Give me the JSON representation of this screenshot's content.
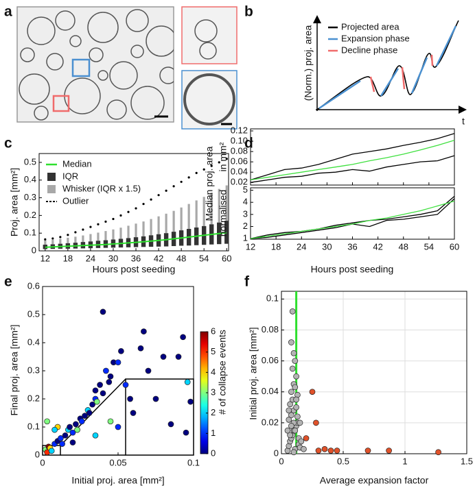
{
  "panel_labels": [
    "a",
    "b",
    "c",
    "d",
    "e",
    "f"
  ],
  "schematic": {
    "ylabel": "(Norm.) proj. area",
    "xlabel": "t",
    "legend": [
      {
        "name": "Projected area",
        "color": "#000000"
      },
      {
        "name": "Expansion phase",
        "color": "#4a90d0"
      },
      {
        "name": "Decline phase",
        "color": "#f06b6b"
      }
    ]
  },
  "chart_data": [
    {
      "type": "box",
      "xlabel": "Hours post seeding",
      "ylabel": "Proj. area [mm²]",
      "x": [
        12,
        14,
        16,
        18,
        20,
        22,
        24,
        26,
        28,
        30,
        32,
        34,
        36,
        38,
        40,
        42,
        44,
        46,
        48,
        50,
        52,
        54,
        56,
        58,
        60
      ],
      "xlim": [
        10.4,
        60.5
      ],
      "xticks": [
        12,
        18,
        24,
        30,
        36,
        42,
        48,
        54,
        60
      ],
      "ylim": [
        0,
        0.55
      ],
      "yticks": [
        0,
        0.1,
        0.2,
        0.3,
        0.4,
        0.5
      ],
      "series": [
        {
          "name": "Median",
          "kind": "line",
          "color": "#2ee02e",
          "values": [
            0.02,
            0.022,
            0.024,
            0.026,
            0.028,
            0.03,
            0.032,
            0.034,
            0.036,
            0.039,
            0.042,
            0.045,
            0.048,
            0.051,
            0.055,
            0.059,
            0.063,
            0.068,
            0.073,
            0.078,
            0.083,
            0.088,
            0.093,
            0.098,
            0.103
          ]
        },
        {
          "name": "IQR",
          "kind": "range",
          "color": "#333333",
          "low": [
            0.01,
            0.011,
            0.012,
            0.012,
            0.013,
            0.014,
            0.015,
            0.016,
            0.017,
            0.018,
            0.019,
            0.02,
            0.021,
            0.022,
            0.023,
            0.024,
            0.025,
            0.027,
            0.029,
            0.03,
            0.032,
            0.034,
            0.036,
            0.038,
            0.04
          ],
          "values": [
            0.035,
            0.037,
            0.04,
            0.043,
            0.046,
            0.05,
            0.053,
            0.057,
            0.06,
            0.064,
            0.068,
            0.072,
            0.077,
            0.082,
            0.088,
            0.094,
            0.1,
            0.108,
            0.116,
            0.124,
            0.132,
            0.14,
            0.15,
            0.16,
            0.17
          ]
        },
        {
          "name": "Whisker (IQR x 1.5)",
          "kind": "whisker",
          "color": "#a8a8a8",
          "values": [
            0.06,
            0.063,
            0.068,
            0.074,
            0.08,
            0.087,
            0.095,
            0.103,
            0.112,
            0.121,
            0.131,
            0.142,
            0.154,
            0.166,
            0.18,
            0.195,
            0.21,
            0.226,
            0.245,
            0.265,
            0.285,
            0.305,
            0.33,
            0.35,
            0.37
          ]
        },
        {
          "name": "Outlier",
          "kind": "points",
          "color": "#000000",
          "values": [
            0.065,
            0.07,
            0.078,
            0.09,
            0.105,
            0.12,
            0.135,
            0.15,
            0.165,
            0.18,
            0.2,
            0.22,
            0.24,
            0.265,
            0.29,
            0.315,
            0.34,
            0.365,
            0.39,
            0.415,
            0.44,
            0.46,
            0.48,
            0.5,
            0.52
          ]
        }
      ]
    },
    {
      "type": "line",
      "ylabel": "in mm²",
      "shared_ylabel": "Median proj. area",
      "x": [
        12,
        16,
        20,
        24,
        28,
        32,
        36,
        40,
        44,
        48,
        52,
        56,
        60
      ],
      "xlim": [
        12,
        60
      ],
      "xticks": [
        12,
        18,
        24,
        30,
        36,
        42,
        48,
        54,
        60
      ],
      "ylim": [
        0.015,
        0.124
      ],
      "yticks": [
        0.02,
        0.04,
        0.06,
        0.08,
        {
          "value": 0.1,
          "label": "0.10"
        },
        0.12
      ],
      "series": [
        {
          "color": "#000000",
          "values": [
            0.025,
            0.035,
            0.045,
            0.048,
            0.055,
            0.065,
            0.075,
            0.08,
            0.085,
            0.092,
            0.098,
            0.105,
            0.115
          ]
        },
        {
          "color": "#000000",
          "values": [
            0.02,
            0.025,
            0.03,
            0.032,
            0.038,
            0.04,
            0.045,
            0.042,
            0.05,
            0.055,
            0.06,
            0.062,
            0.072
          ]
        },
        {
          "color": "#3ee03e",
          "values": [
            0.025,
            0.03,
            0.035,
            0.04,
            0.045,
            0.05,
            0.055,
            0.062,
            0.068,
            0.075,
            0.083,
            0.092,
            0.102
          ]
        }
      ]
    },
    {
      "type": "line",
      "ylabel": "normalised",
      "xlabel": "Hours post seeding",
      "x": [
        12,
        16,
        20,
        24,
        28,
        32,
        36,
        40,
        44,
        48,
        52,
        56,
        60
      ],
      "xlim": [
        12,
        60
      ],
      "xticks": [
        12,
        18,
        24,
        30,
        36,
        42,
        48,
        54,
        60
      ],
      "ylim": [
        0.95,
        5.2
      ],
      "yticks": [
        1,
        2,
        3,
        4,
        5
      ],
      "series": [
        {
          "color": "#000000",
          "values": [
            1,
            1.3,
            1.5,
            1.6,
            1.8,
            2.1,
            2.3,
            2.5,
            2.6,
            2.8,
            3.0,
            3.3,
            4.5
          ]
        },
        {
          "color": "#000000",
          "values": [
            1,
            1.1,
            1.3,
            1.5,
            1.7,
            1.9,
            2.2,
            2.0,
            2.5,
            2.6,
            2.8,
            3.0,
            4.3
          ]
        },
        {
          "color": "#3ee03e",
          "values": [
            1,
            1.2,
            1.4,
            1.6,
            1.8,
            2.0,
            2.2,
            2.5,
            2.7,
            3.0,
            3.3,
            3.7,
            4.1
          ]
        }
      ]
    },
    {
      "type": "scatter",
      "xlabel": "Initial proj. area [mm²]",
      "ylabel": "Final proj. area [mm²]",
      "xlim": [
        0,
        0.1
      ],
      "xticks": [
        0,
        0.05,
        0.1
      ],
      "ylim": [
        0,
        0.6
      ],
      "yticks": [
        0,
        0.1,
        0.2,
        0.3,
        0.4,
        0.5,
        0.6
      ],
      "colormap": "jet",
      "clim": [
        0,
        6
      ],
      "cticks": [
        0,
        1,
        2,
        3,
        4,
        5,
        6
      ],
      "clabel": "# of collapse events",
      "x": [
        0.002,
        0.003,
        0.004,
        0.005,
        0.006,
        0.008,
        0.01,
        0.012,
        0.015,
        0.017,
        0.018,
        0.02,
        0.022,
        0.023,
        0.025,
        0.026,
        0.028,
        0.03,
        0.031,
        0.033,
        0.035,
        0.035,
        0.036,
        0.038,
        0.04,
        0.04,
        0.042,
        0.044,
        0.045,
        0.047,
        0.05,
        0.052,
        0.055,
        0.058,
        0.06,
        0.065,
        0.067,
        0.07,
        0.075,
        0.08,
        0.085,
        0.09,
        0.093,
        0.095,
        0.098,
        0.003,
        0.01,
        0.008,
        0.013,
        0.02,
        0.045,
        0.05,
        0.035,
        0.096
      ],
      "values": [
        0.02,
        0.01,
        0.03,
        0.025,
        0.015,
        0.04,
        0.05,
        0.06,
        0.07,
        0.09,
        0.1,
        0.08,
        0.11,
        0.09,
        0.13,
        0.12,
        0.14,
        0.16,
        0.15,
        0.18,
        0.2,
        0.23,
        0.19,
        0.25,
        0.22,
        0.51,
        0.3,
        0.26,
        0.28,
        0.33,
        0.33,
        0.37,
        0.25,
        0.2,
        0.15,
        0.38,
        0.44,
        0.3,
        0.2,
        0.35,
        0.11,
        0.35,
        0.42,
        0.08,
        0.19,
        0.12,
        0.1,
        0.09,
        0.04,
        0.045,
        0.12,
        0.1,
        0.07,
        0.26
      ],
      "color_values": [
        3,
        5,
        6,
        4,
        2,
        1,
        0,
        1,
        0,
        2,
        0,
        1,
        0,
        3,
        0,
        1,
        0,
        2,
        0,
        0,
        1,
        0,
        3,
        0,
        0,
        0,
        1,
        0,
        0,
        0,
        1,
        0,
        1,
        0,
        0,
        0,
        0,
        0,
        0,
        0,
        0,
        0,
        0,
        0,
        0,
        3,
        4,
        2,
        1,
        0,
        3,
        1,
        2,
        2
      ]
    },
    {
      "type": "scatter",
      "xlabel": "Average expansion factor",
      "ylabel": "Initial proj. area [mm²]",
      "xlim": [
        0,
        1.5
      ],
      "xticks": [
        0,
        0.5,
        1,
        1.5
      ],
      "ylim": [
        0,
        0.105
      ],
      "yticks": [
        0,
        0.02,
        0.04,
        0.06,
        0.08,
        0.1
      ],
      "grid": true,
      "vline": 0.12,
      "vline_color": "#2ee02e",
      "series": [
        {
          "color": "#b4b4b4",
          "x": [
            0.05,
            0.06,
            0.07,
            0.08,
            0.09,
            0.1,
            0.11,
            0.12,
            0.13,
            0.14,
            0.15,
            0.06,
            0.08,
            0.1,
            0.12,
            0.14,
            0.07,
            0.09,
            0.11,
            0.13,
            0.05,
            0.08,
            0.1,
            0.12,
            0.16,
            0.18,
            0.06,
            0.09,
            0.11,
            0.15,
            0.07,
            0.1,
            0.13,
            0.08,
            0.12,
            0.09,
            0.11,
            0.1,
            0.08,
            0.1
          ],
          "values": [
            0.002,
            0.005,
            0.008,
            0.01,
            0.012,
            0.015,
            0.003,
            0.018,
            0.02,
            0.006,
            0.004,
            0.022,
            0.025,
            0.028,
            0.03,
            0.01,
            0.032,
            0.035,
            0.015,
            0.038,
            0.015,
            0.04,
            0.045,
            0.05,
            0.008,
            0.003,
            0.028,
            0.055,
            0.06,
            0.02,
            0.012,
            0.065,
            0.024,
            0.072,
            0.035,
            0.092,
            0.043,
            0.02,
            0.018,
            0.001
          ]
        },
        {
          "color": "#e0522a",
          "x": [
            0.2,
            0.25,
            0.28,
            0.3,
            0.35,
            0.4,
            0.45,
            0.7,
            0.87,
            1.27
          ],
          "values": [
            0.01,
            0.04,
            0.02,
            0.002,
            0.003,
            0.002,
            0.002,
            0.002,
            0.002,
            0.001
          ]
        }
      ]
    }
  ]
}
